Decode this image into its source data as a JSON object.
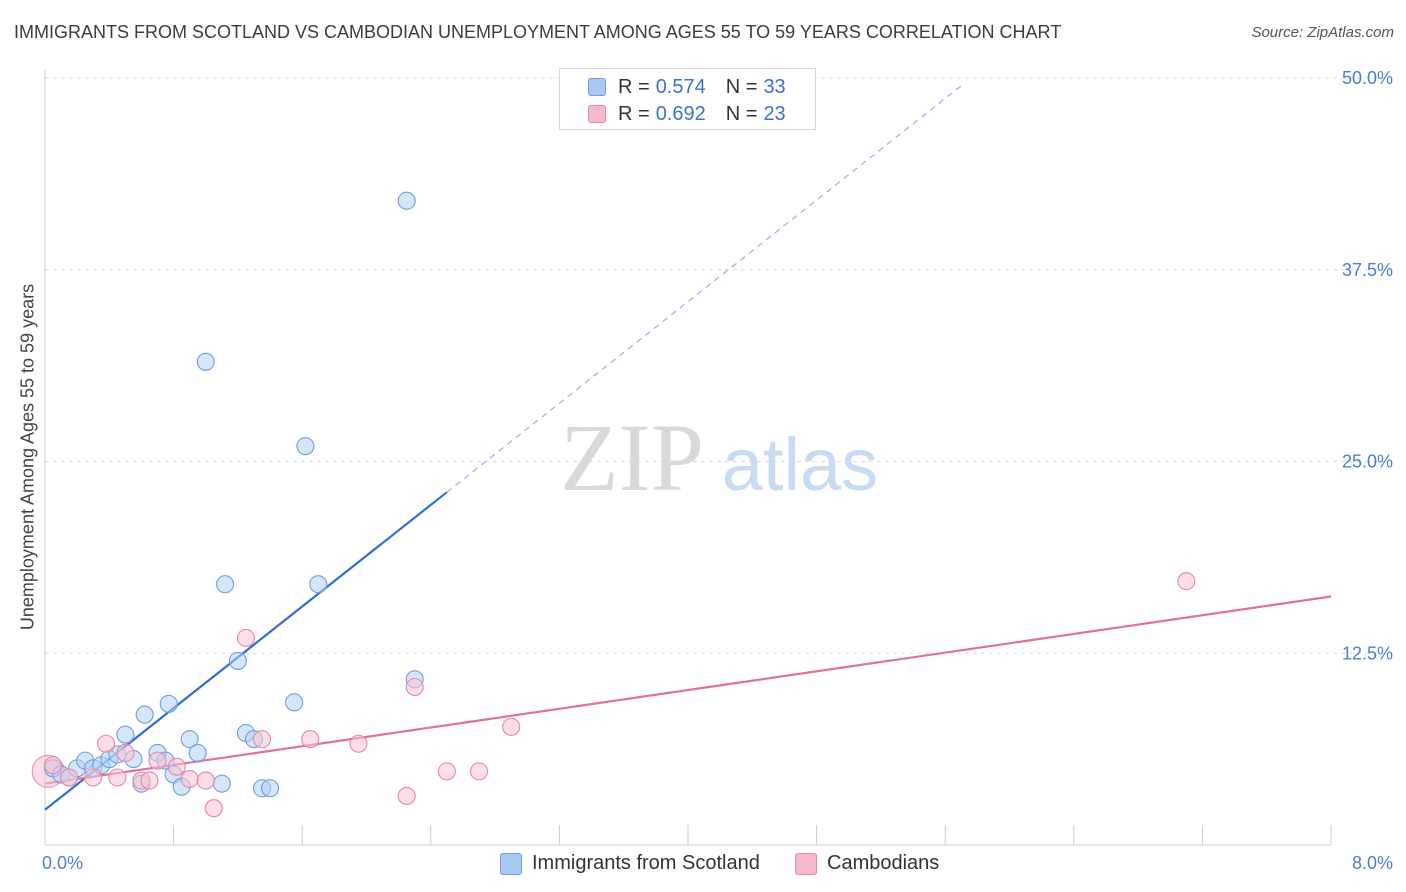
{
  "title": "IMMIGRANTS FROM SCOTLAND VS CAMBODIAN UNEMPLOYMENT AMONG AGES 55 TO 59 YEARS CORRELATION CHART",
  "source": "Source: ZipAtlas.com",
  "watermark": {
    "zip": "ZIP",
    "atlas": "atlas"
  },
  "legend": {
    "r_label": "R =",
    "n_label": "N =",
    "items": [
      {
        "name": "Immigrants from Scotland",
        "r": "0.574",
        "n": "33",
        "color": "#6c9fe0"
      },
      {
        "name": "Cambodians",
        "r": "0.692",
        "n": "23",
        "color": "#ea86a6"
      }
    ]
  },
  "chart_data": {
    "type": "scatter",
    "title": "IMMIGRANTS FROM SCOTLAND VS CAMBODIAN UNEMPLOYMENT AMONG AGES 55 TO 59 YEARS CORRELATION CHART",
    "xlabel": "",
    "ylabel": "Unemployment Among Ages 55 to 59 years",
    "xlim": [
      0,
      8.0
    ],
    "ylim": [
      0,
      50.0
    ],
    "x_tick_labels": [
      "0.0%",
      "8.0%"
    ],
    "y_ticks": [
      12.5,
      25.0,
      37.5,
      50.0
    ],
    "y_tick_labels": [
      "12.5%",
      "25.0%",
      "37.5%",
      "50.0%"
    ],
    "series": [
      {
        "name": "Immigrants from Scotland",
        "color": "#6c9fe0",
        "fill": "#b5d1f5",
        "trend": {
          "x0": 0.0,
          "y0": 2.3,
          "x1": 2.5,
          "y1": 23.0,
          "dash_to_x": 5.7
        },
        "points": [
          [
            0.05,
            5.0
          ],
          [
            0.1,
            4.6
          ],
          [
            0.15,
            4.4
          ],
          [
            0.2,
            5.0
          ],
          [
            0.25,
            5.5
          ],
          [
            0.3,
            5.0
          ],
          [
            0.35,
            5.2
          ],
          [
            0.4,
            5.6
          ],
          [
            0.45,
            5.9
          ],
          [
            0.5,
            7.2
          ],
          [
            0.55,
            5.6
          ],
          [
            0.6,
            4.0
          ],
          [
            0.62,
            8.5
          ],
          [
            0.7,
            6.0
          ],
          [
            0.75,
            5.5
          ],
          [
            0.77,
            9.2
          ],
          [
            0.8,
            4.6
          ],
          [
            0.85,
            3.8
          ],
          [
            0.9,
            6.9
          ],
          [
            0.95,
            6.0
          ],
          [
            1.0,
            31.5
          ],
          [
            1.1,
            4.0
          ],
          [
            1.12,
            17.0
          ],
          [
            1.2,
            12.0
          ],
          [
            1.25,
            7.3
          ],
          [
            1.3,
            6.9
          ],
          [
            1.35,
            3.7
          ],
          [
            1.4,
            3.7
          ],
          [
            1.55,
            9.3
          ],
          [
            1.62,
            26.0
          ],
          [
            1.7,
            17.0
          ],
          [
            2.25,
            42.0
          ],
          [
            2.3,
            10.8
          ]
        ]
      },
      {
        "name": "Cambodians",
        "color": "#ea86a6",
        "fill": "#f8c3d3",
        "trend": {
          "x0": 0.0,
          "y0": 4.0,
          "x1": 8.0,
          "y1": 16.2
        },
        "points": [
          [
            0.05,
            5.2
          ],
          [
            0.15,
            4.4
          ],
          [
            0.3,
            4.4
          ],
          [
            0.38,
            6.6
          ],
          [
            0.45,
            4.4
          ],
          [
            0.5,
            6.0
          ],
          [
            0.6,
            4.2
          ],
          [
            0.65,
            4.2
          ],
          [
            0.7,
            5.5
          ],
          [
            0.82,
            5.1
          ],
          [
            0.9,
            4.3
          ],
          [
            1.0,
            4.2
          ],
          [
            1.05,
            2.4
          ],
          [
            1.25,
            13.5
          ],
          [
            1.35,
            6.9
          ],
          [
            1.65,
            6.9
          ],
          [
            1.95,
            6.6
          ],
          [
            2.25,
            3.2
          ],
          [
            2.3,
            10.3
          ],
          [
            2.5,
            4.8
          ],
          [
            2.7,
            4.8
          ],
          [
            2.9,
            7.7
          ],
          [
            7.1,
            17.2
          ]
        ]
      }
    ]
  }
}
